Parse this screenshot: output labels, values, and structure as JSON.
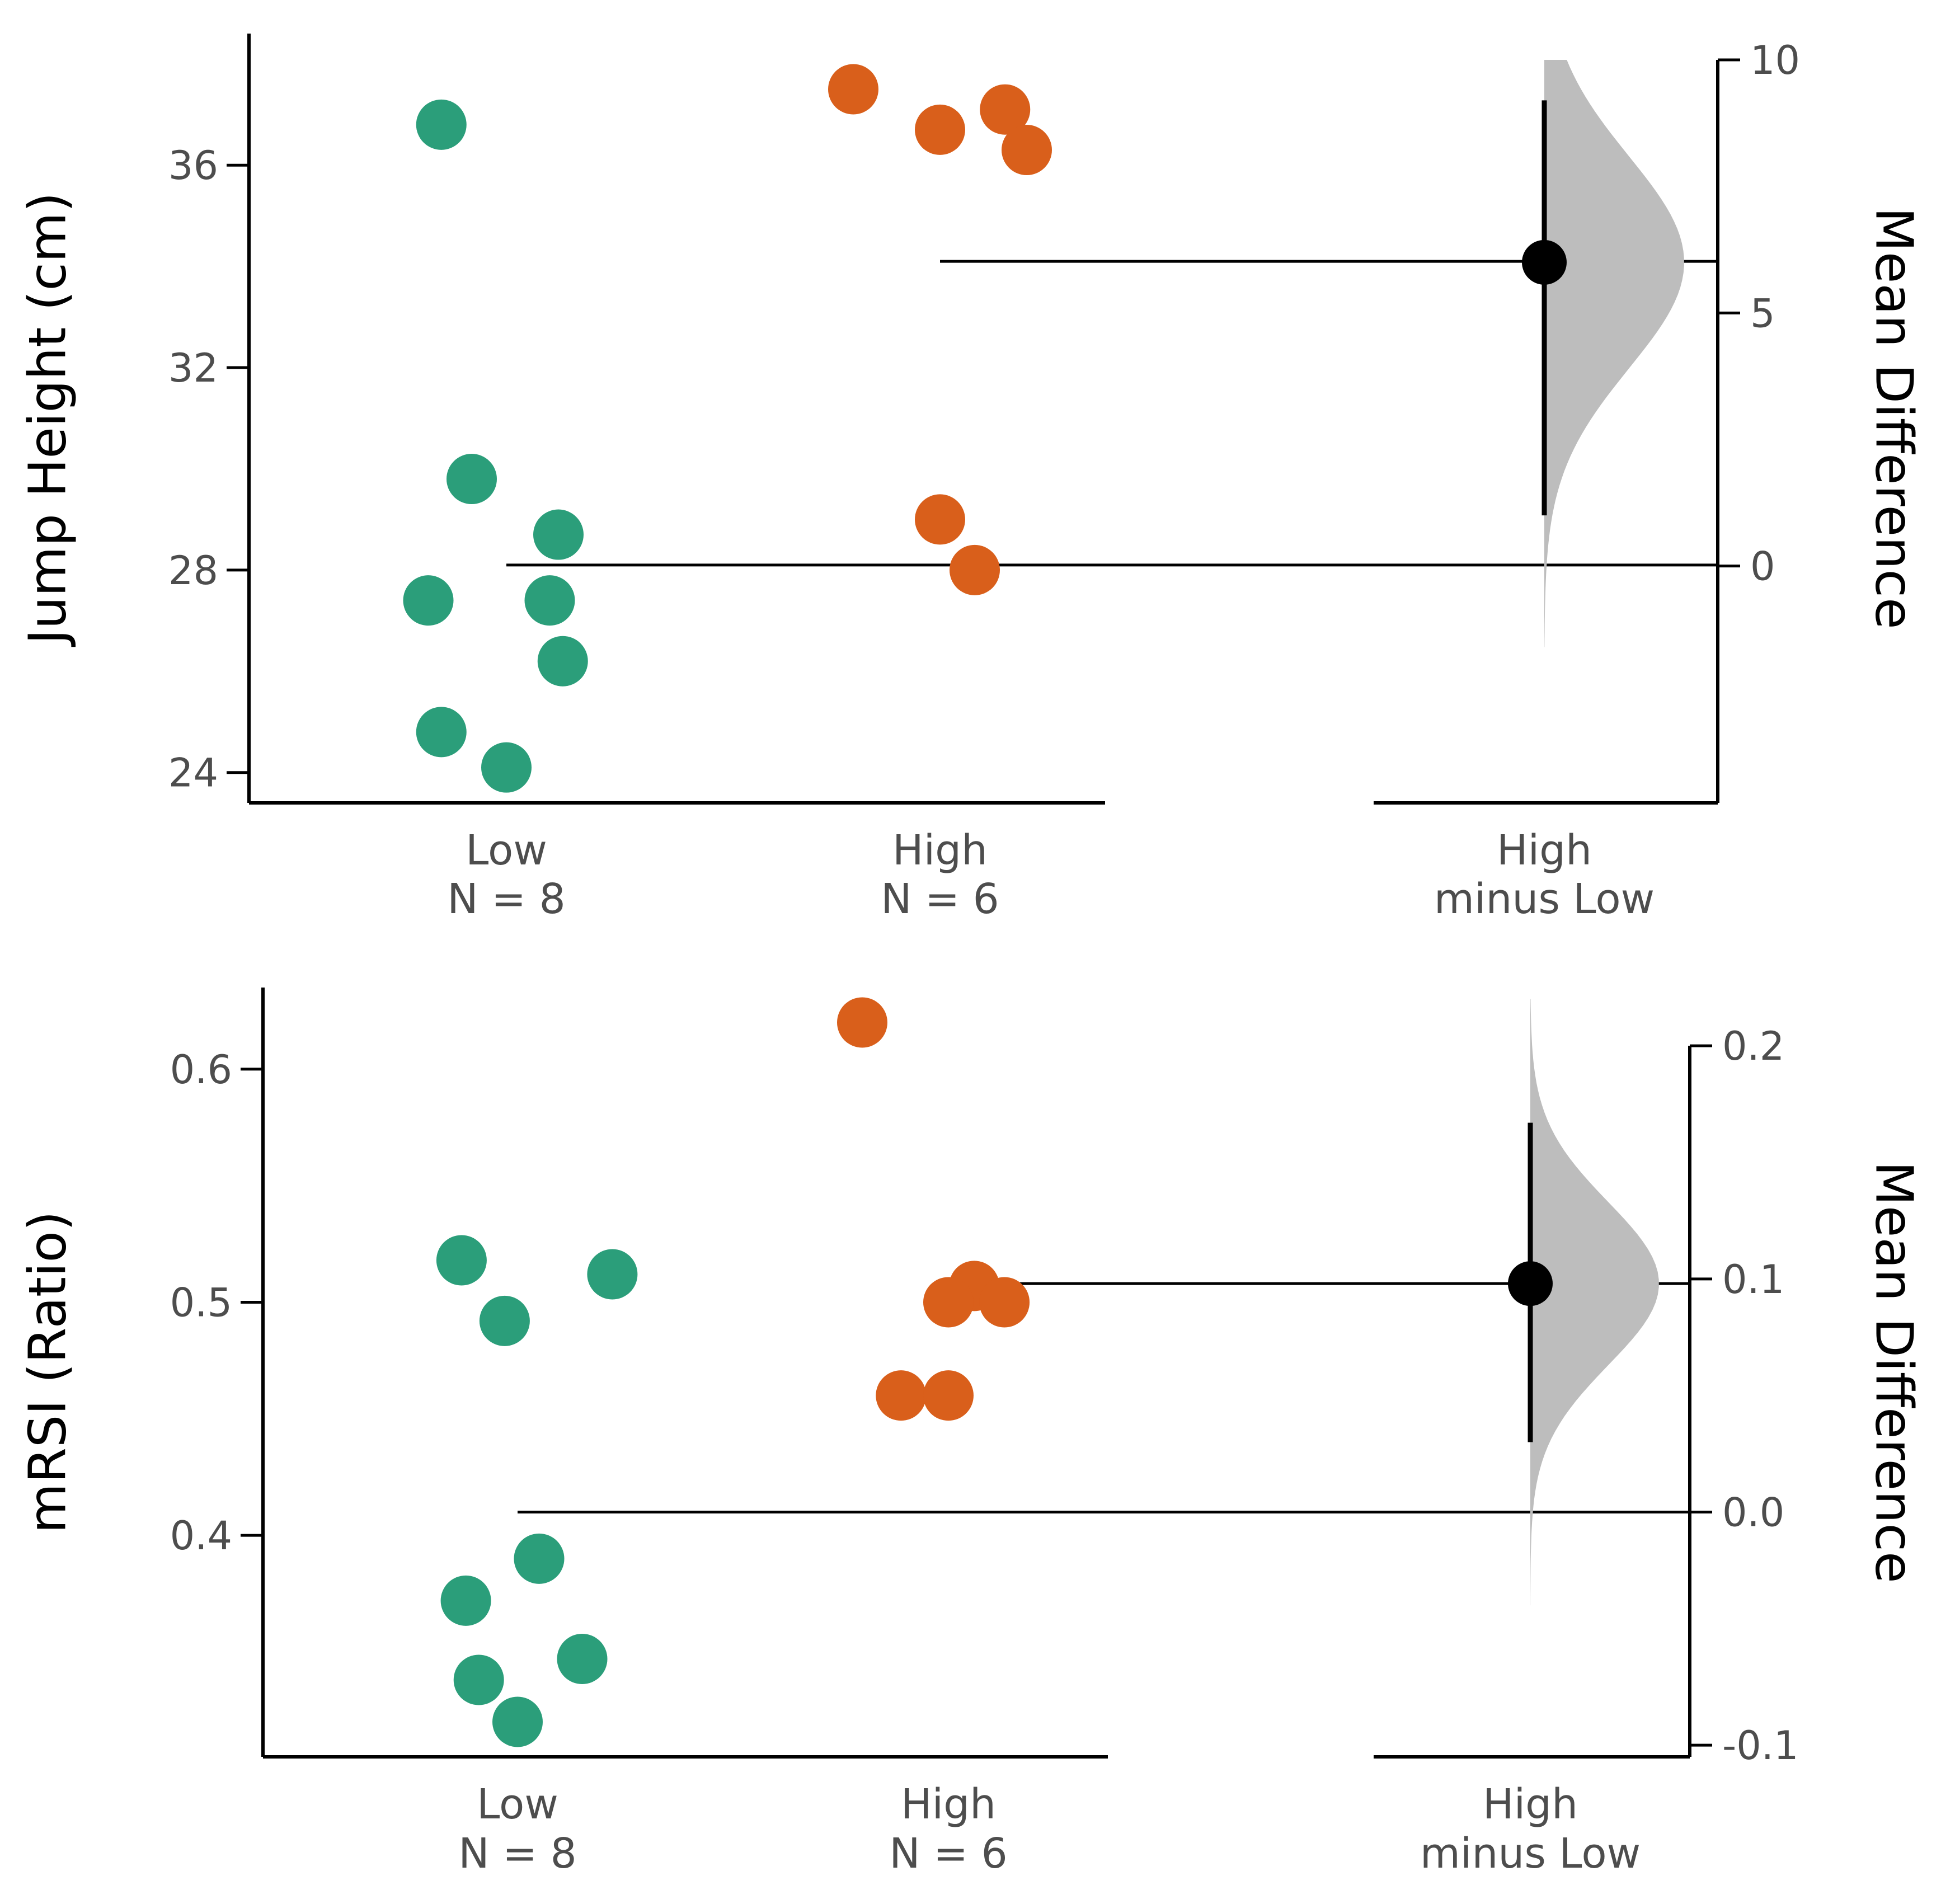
{
  "chart_data": [
    {
      "type": "scatter",
      "subtype": "gardner-altman estimation plot",
      "ylabel": "Jump Height (cm)",
      "y2label": "Mean Difference",
      "ylim": [
        23.4,
        38.6
      ],
      "yticks": [
        24,
        28,
        32,
        36
      ],
      "y2ticks": [
        0,
        5,
        10
      ],
      "y2_zero_at": 28.08,
      "categories": [
        {
          "label": "Low",
          "n_label": "N = 8"
        },
        {
          "label": "High",
          "n_label": "N = 6"
        },
        {
          "label": "High",
          "n_label": "minus Low"
        }
      ],
      "series": [
        {
          "name": "Low",
          "color": "#2b9e7a",
          "jitter": [
            -0.15,
            -0.08,
            0.12,
            -0.18,
            0.1,
            0.13,
            -0.15,
            0.0
          ],
          "values": [
            36.8,
            29.8,
            28.7,
            27.4,
            27.4,
            26.2,
            24.8,
            24.1
          ]
        },
        {
          "name": "High",
          "color": "#d95f1b",
          "jitter": [
            -0.2,
            0.0,
            0.15,
            0.2,
            0.0,
            0.08
          ],
          "values": [
            37.5,
            36.7,
            37.1,
            36.3,
            29.0,
            28.0
          ]
        }
      ],
      "low_mean": 28.1,
      "high_mean": 34.1,
      "mean_difference": 6.0,
      "ci": [
        1.0,
        9.2
      ],
      "bootstrap_range": [
        -1.6,
        10.0
      ],
      "bootstrap_peak_width": 0.45,
      "colors": {
        "difference_fill": "#bdbdbd",
        "axis": "#000000"
      }
    },
    {
      "type": "scatter",
      "subtype": "gardner-altman estimation plot",
      "ylabel": "mRSI (Ratio)",
      "y2label": "Mean Difference",
      "ylim": [
        0.305,
        0.635
      ],
      "yticks": [
        0.4,
        0.5,
        0.6
      ],
      "y2ticks": [
        -0.1,
        0.0,
        0.1,
        0.2
      ],
      "y2_zero_at": 0.41,
      "categories": [
        {
          "label": "Low",
          "n_label": "N = 8"
        },
        {
          "label": "High",
          "n_label": "N = 6"
        },
        {
          "label": "High",
          "n_label": "minus Low"
        }
      ],
      "series": [
        {
          "name": "Low",
          "color": "#2b9e7a",
          "jitter": [
            -0.13,
            0.22,
            -0.03,
            0.05,
            -0.12,
            0.15,
            -0.09,
            0.0
          ],
          "values": [
            0.518,
            0.512,
            0.492,
            0.39,
            0.372,
            0.347,
            0.338,
            0.32
          ]
        },
        {
          "name": "High",
          "color": "#d95f1b",
          "jitter": [
            -0.2,
            0.06,
            0.13,
            0.0,
            -0.11,
            0.0
          ],
          "values": [
            0.62,
            0.507,
            0.5,
            0.5,
            0.46,
            0.46
          ]
        }
      ],
      "low_mean": 0.41,
      "high_mean": 0.508,
      "mean_difference": 0.098,
      "ci": [
        0.03,
        0.167
      ],
      "bootstrap_range": [
        -0.04,
        0.22
      ],
      "bootstrap_peak_width": 0.45,
      "colors": {
        "difference_fill": "#bdbdbd",
        "axis": "#000000"
      }
    }
  ]
}
